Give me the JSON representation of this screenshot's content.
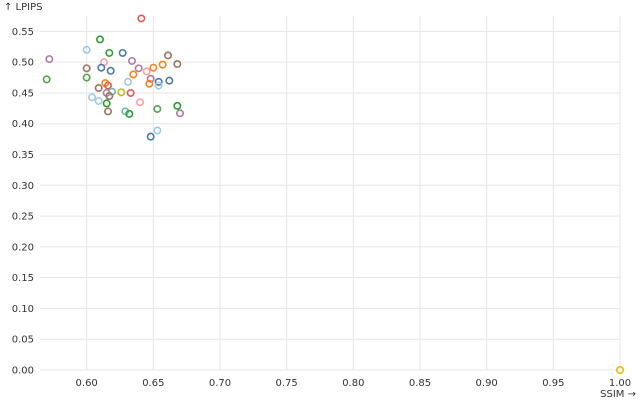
{
  "chart_data": {
    "type": "scatter",
    "title": "",
    "xlabel": "SSIM →",
    "ylabel": "↑ LPIPS",
    "xlim": [
      0.565,
      1.0
    ],
    "ylim": [
      0.0,
      0.575
    ],
    "x_ticks": [
      0.6,
      0.65,
      0.7,
      0.75,
      0.8,
      0.85,
      0.9,
      0.95,
      1.0
    ],
    "x_tick_labels": [
      "0.60",
      "0.65",
      "0.70",
      "0.75",
      "0.80",
      "0.85",
      "0.90",
      "0.95",
      "1.00"
    ],
    "y_ticks": [
      0.0,
      0.05,
      0.1,
      0.15,
      0.2,
      0.25,
      0.3,
      0.35,
      0.4,
      0.45,
      0.5,
      0.55
    ],
    "y_tick_labels": [
      "0.00",
      "0.05",
      "0.10",
      "0.15",
      "0.20",
      "0.25",
      "0.30",
      "0.35",
      "0.40",
      "0.45",
      "0.50",
      "0.55"
    ],
    "grid": true,
    "legend": "none",
    "points": [
      {
        "x": 0.641,
        "y": 0.571,
        "color": "#e45756"
      },
      {
        "x": 0.61,
        "y": 0.537,
        "color": "#2ca02c"
      },
      {
        "x": 0.6,
        "y": 0.52,
        "color": "#9ecae9"
      },
      {
        "x": 0.617,
        "y": 0.515,
        "color": "#2ca02c"
      },
      {
        "x": 0.627,
        "y": 0.515,
        "color": "#4c78a8"
      },
      {
        "x": 0.572,
        "y": 0.505,
        "color": "#b279a2"
      },
      {
        "x": 0.661,
        "y": 0.511,
        "color": "#9d755d"
      },
      {
        "x": 0.613,
        "y": 0.5,
        "color": "#ff9da6"
      },
      {
        "x": 0.634,
        "y": 0.502,
        "color": "#b279a2"
      },
      {
        "x": 0.668,
        "y": 0.497,
        "color": "#9d755d"
      },
      {
        "x": 0.657,
        "y": 0.496,
        "color": "#f58518"
      },
      {
        "x": 0.6,
        "y": 0.49,
        "color": "#9d755d"
      },
      {
        "x": 0.611,
        "y": 0.491,
        "color": "#4c78a8"
      },
      {
        "x": 0.618,
        "y": 0.486,
        "color": "#4c78a8"
      },
      {
        "x": 0.639,
        "y": 0.49,
        "color": "#b279a2"
      },
      {
        "x": 0.645,
        "y": 0.485,
        "color": "#ff9da6"
      },
      {
        "x": 0.65,
        "y": 0.491,
        "color": "#f58518"
      },
      {
        "x": 0.635,
        "y": 0.48,
        "color": "#f58518"
      },
      {
        "x": 0.57,
        "y": 0.472,
        "color": "#54a24b"
      },
      {
        "x": 0.6,
        "y": 0.475,
        "color": "#54a24b"
      },
      {
        "x": 0.648,
        "y": 0.473,
        "color": "#b279a2"
      },
      {
        "x": 0.654,
        "y": 0.468,
        "color": "#4c78a8"
      },
      {
        "x": 0.662,
        "y": 0.47,
        "color": "#4c78a8"
      },
      {
        "x": 0.614,
        "y": 0.466,
        "color": "#f58518"
      },
      {
        "x": 0.631,
        "y": 0.468,
        "color": "#9ecae9"
      },
      {
        "x": 0.647,
        "y": 0.465,
        "color": "#f58518"
      },
      {
        "x": 0.609,
        "y": 0.458,
        "color": "#9d755d"
      },
      {
        "x": 0.616,
        "y": 0.462,
        "color": "#e45756"
      },
      {
        "x": 0.654,
        "y": 0.462,
        "color": "#9ecae9"
      },
      {
        "x": 0.615,
        "y": 0.45,
        "color": "#b279a2"
      },
      {
        "x": 0.619,
        "y": 0.452,
        "color": "#72b7b2"
      },
      {
        "x": 0.626,
        "y": 0.451,
        "color": "#bcbd22"
      },
      {
        "x": 0.633,
        "y": 0.45,
        "color": "#e45756"
      },
      {
        "x": 0.604,
        "y": 0.443,
        "color": "#9ecae9"
      },
      {
        "x": 0.617,
        "y": 0.445,
        "color": "#9d755d"
      },
      {
        "x": 0.609,
        "y": 0.437,
        "color": "#9ecae9"
      },
      {
        "x": 0.615,
        "y": 0.433,
        "color": "#2ca02c"
      },
      {
        "x": 0.64,
        "y": 0.435,
        "color": "#ff9da6"
      },
      {
        "x": 0.668,
        "y": 0.429,
        "color": "#2ca02c"
      },
      {
        "x": 0.653,
        "y": 0.424,
        "color": "#54a24b"
      },
      {
        "x": 0.616,
        "y": 0.42,
        "color": "#9d755d"
      },
      {
        "x": 0.629,
        "y": 0.42,
        "color": "#72b7b2"
      },
      {
        "x": 0.632,
        "y": 0.416,
        "color": "#2ca02c"
      },
      {
        "x": 0.67,
        "y": 0.417,
        "color": "#b279a2"
      },
      {
        "x": 0.653,
        "y": 0.389,
        "color": "#9ecae9"
      },
      {
        "x": 0.648,
        "y": 0.379,
        "color": "#4c78a8"
      },
      {
        "x": 1.0,
        "y": 0.0,
        "color": "#f5b800"
      }
    ]
  }
}
